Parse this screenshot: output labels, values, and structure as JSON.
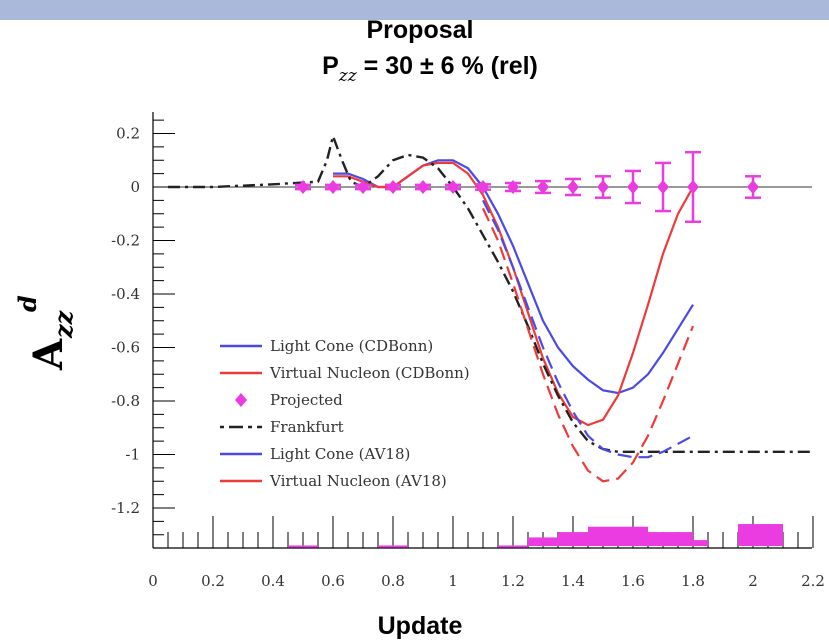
{
  "chart_data": {
    "type": "line",
    "title": "Proposal",
    "subtitle_main": "P",
    "subtitle_sub": "zz",
    "subtitle_rest": " = 30 ± 6 % (rel)",
    "xlabel": "Update",
    "ylabel_main": "A",
    "ylabel_sub": "zz",
    "ylabel_sup": "d",
    "xlim": [
      0,
      2.2
    ],
    "ylim": [
      -1.4,
      0.25
    ],
    "x_ticks": [
      "0",
      "0.2",
      "0.4",
      "0.6",
      "0.8",
      "1",
      "1.2",
      "1.4",
      "1.6",
      "1.8",
      "2",
      "2.2"
    ],
    "y_ticks": [
      "0.2",
      "0",
      "-0.2",
      "-0.4",
      "-0.6",
      "-0.8",
      "-1",
      "-1.2"
    ],
    "series": [
      {
        "name": "Light Cone (CDBonn)",
        "color": "#4a4ae6",
        "style": "solid",
        "x": [
          0.6,
          0.65,
          0.7,
          0.75,
          0.8,
          0.85,
          0.9,
          0.95,
          1.0,
          1.05,
          1.1,
          1.15,
          1.2,
          1.25,
          1.3,
          1.35,
          1.4,
          1.45,
          1.5,
          1.55,
          1.6,
          1.65,
          1.7,
          1.75,
          1.8
        ],
        "y": [
          0.05,
          0.05,
          0.03,
          0.0,
          0.0,
          0.04,
          0.08,
          0.1,
          0.1,
          0.07,
          0.0,
          -0.1,
          -0.22,
          -0.36,
          -0.5,
          -0.6,
          -0.67,
          -0.72,
          -0.76,
          -0.77,
          -0.75,
          -0.7,
          -0.62,
          -0.53,
          -0.44
        ]
      },
      {
        "name": "Virtual Nucleon (CDBonn)",
        "color": "#ee3a3a",
        "style": "solid",
        "x": [
          0.6,
          0.65,
          0.7,
          0.75,
          0.8,
          0.85,
          0.9,
          0.95,
          1.0,
          1.05,
          1.1,
          1.15,
          1.2,
          1.25,
          1.3,
          1.35,
          1.4,
          1.45,
          1.5,
          1.55,
          1.6,
          1.65,
          1.7,
          1.75,
          1.8
        ],
        "y": [
          0.04,
          0.04,
          0.02,
          0.0,
          0.0,
          0.04,
          0.08,
          0.09,
          0.09,
          0.05,
          -0.03,
          -0.15,
          -0.3,
          -0.47,
          -0.64,
          -0.77,
          -0.86,
          -0.89,
          -0.87,
          -0.78,
          -0.62,
          -0.44,
          -0.25,
          -0.1,
          0.0
        ]
      },
      {
        "name": "Frankfurt",
        "color": "#222222",
        "style": "dashdot",
        "x": [
          0.05,
          0.2,
          0.4,
          0.55,
          0.58,
          0.6,
          0.63,
          0.66,
          0.7,
          0.75,
          0.8,
          0.85,
          0.9,
          0.95,
          1.0,
          1.05,
          1.1,
          1.15,
          1.2,
          1.25,
          1.3,
          1.35,
          1.4,
          1.45,
          1.5,
          1.55,
          1.6,
          1.7,
          1.8,
          2.0,
          2.2
        ],
        "y": [
          0.0,
          0.0,
          0.01,
          0.02,
          0.1,
          0.19,
          0.1,
          0.02,
          0.0,
          0.04,
          0.1,
          0.12,
          0.11,
          0.07,
          0.0,
          -0.08,
          -0.18,
          -0.28,
          -0.39,
          -0.52,
          -0.66,
          -0.78,
          -0.88,
          -0.95,
          -0.98,
          -0.99,
          -0.99,
          -0.99,
          -0.99,
          -0.99,
          -0.99
        ]
      },
      {
        "name": "Light Cone (AV18)",
        "color": "#4a4ae6",
        "style": "dashed",
        "x": [
          1.1,
          1.15,
          1.2,
          1.25,
          1.3,
          1.35,
          1.4,
          1.45,
          1.5,
          1.55,
          1.6,
          1.65,
          1.7,
          1.75,
          1.8
        ],
        "y": [
          -0.05,
          -0.16,
          -0.3,
          -0.45,
          -0.6,
          -0.73,
          -0.84,
          -0.93,
          -0.98,
          -1.0,
          -1.01,
          -1.01,
          -0.99,
          -0.96,
          -0.93
        ]
      },
      {
        "name": "Virtual Nucleon (AV18)",
        "color": "#ee3a3a",
        "style": "dashed",
        "x": [
          1.1,
          1.15,
          1.2,
          1.25,
          1.3,
          1.35,
          1.4,
          1.45,
          1.5,
          1.55,
          1.6,
          1.65,
          1.7,
          1.75,
          1.8
        ],
        "y": [
          -0.08,
          -0.2,
          -0.36,
          -0.53,
          -0.7,
          -0.85,
          -0.97,
          -1.06,
          -1.1,
          -1.09,
          -1.03,
          -0.93,
          -0.8,
          -0.66,
          -0.52
        ]
      }
    ],
    "projected": {
      "name": "Projected",
      "color": "#ea3ce0",
      "x": [
        0.5,
        0.6,
        0.7,
        0.8,
        0.9,
        1.0,
        1.1,
        1.2,
        1.3,
        1.4,
        1.5,
        1.6,
        1.7,
        1.8,
        2.0
      ],
      "y": [
        0,
        0,
        0,
        0,
        0,
        0,
        0,
        0,
        0,
        0,
        0,
        0,
        0,
        0,
        0
      ],
      "err": [
        0.008,
        0.008,
        0.008,
        0.008,
        0.008,
        0.008,
        0.01,
        0.015,
        0.022,
        0.03,
        0.04,
        0.06,
        0.09,
        0.13,
        0.04
      ]
    },
    "systematic_bands": {
      "color": "#ea3ce0",
      "x_start": [
        0.45,
        0.75,
        1.15,
        1.25,
        1.35,
        1.45,
        1.55,
        1.65,
        1.8,
        1.95
      ],
      "x_end": [
        0.55,
        0.85,
        1.25,
        1.35,
        1.45,
        1.55,
        1.65,
        1.8,
        1.85,
        2.1
      ],
      "top": [
        -1.34,
        -1.34,
        -1.34,
        -1.31,
        -1.29,
        -1.27,
        -1.27,
        -1.29,
        -1.32,
        -1.26
      ]
    },
    "baseline": 0,
    "legend_position": "bottom-left"
  }
}
